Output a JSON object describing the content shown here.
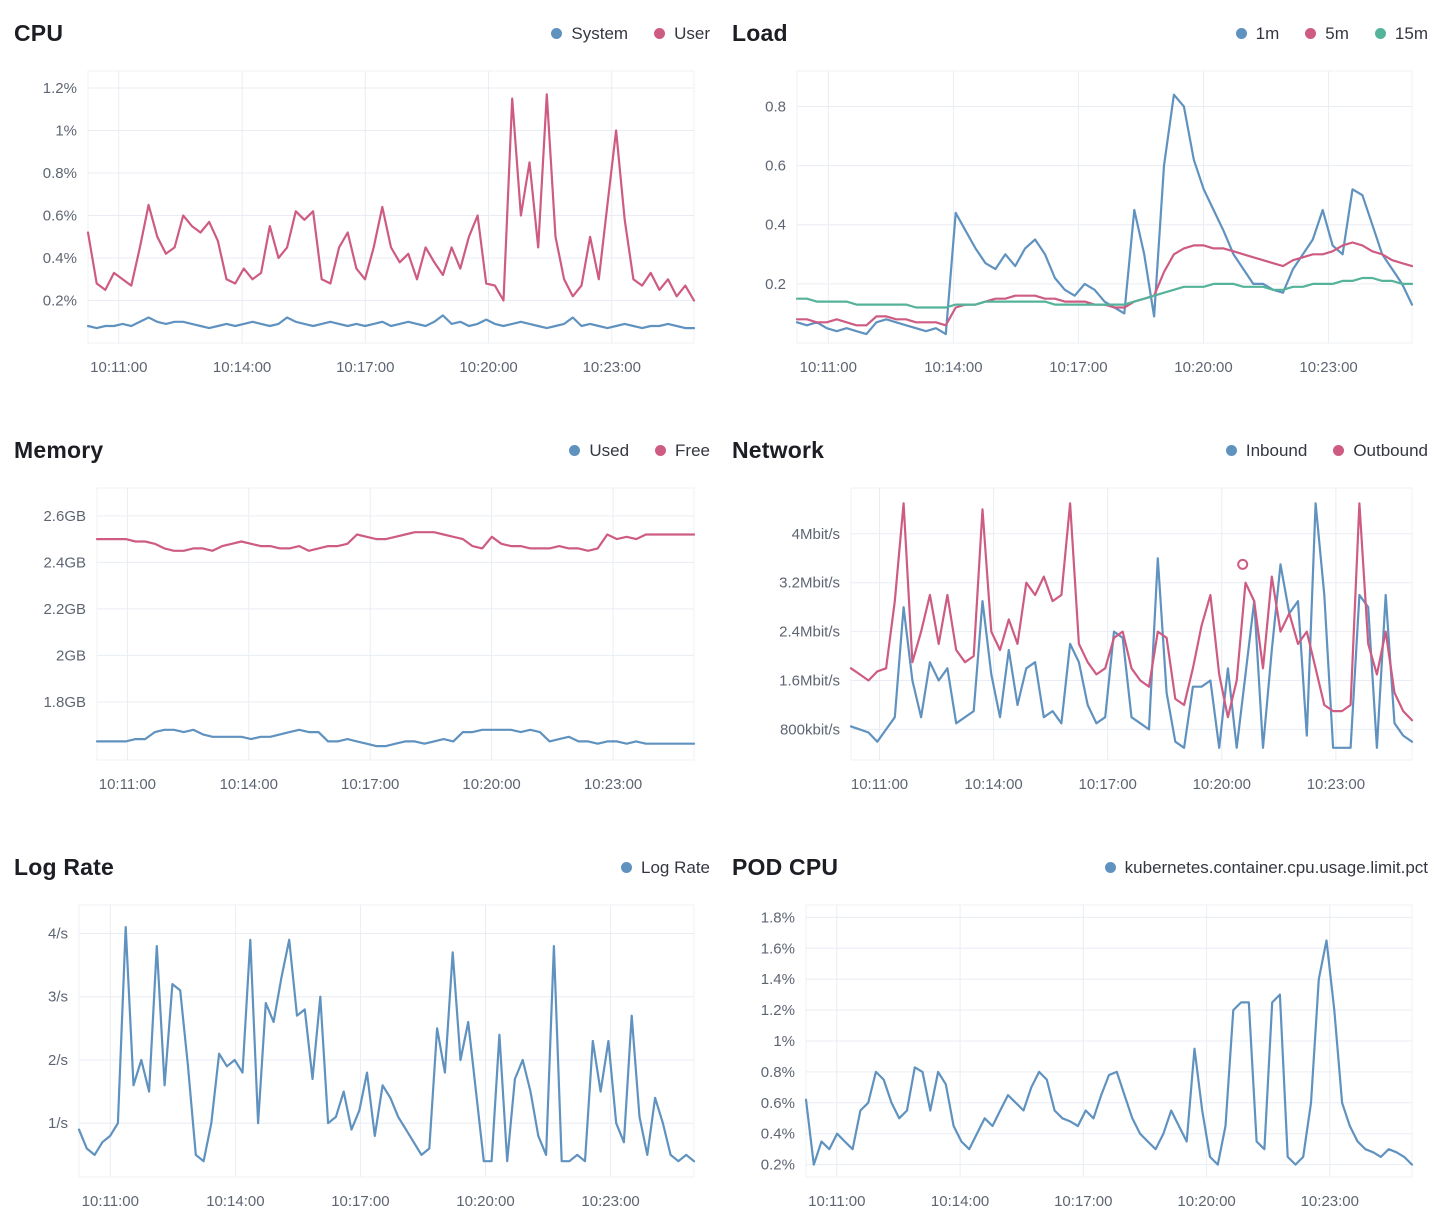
{
  "colors": {
    "blue": "#6092C0",
    "pink": "#CE5C82",
    "green": "#54B399",
    "grid": "#E9EDF3",
    "axis_text": "#5E6572",
    "title_text": "#1D1E24"
  },
  "chart_data": [
    {
      "type": "line",
      "title": "CPU",
      "legend_position": "top-right",
      "grid": true,
      "x_tick_labels": [
        "10:11:00",
        "10:14:00",
        "10:17:00",
        "10:20:00",
        "10:23:00"
      ],
      "x_tick_minutes": [
        1,
        4,
        7,
        10,
        13
      ],
      "x_domain_minutes": [
        0.25,
        15.0
      ],
      "y_tick_labels": [
        "0.2%",
        "0.4%",
        "0.6%",
        "0.8%",
        "1%",
        "1.2%"
      ],
      "y_tick_values": [
        0.2,
        0.4,
        0.6,
        0.8,
        1.0,
        1.2
      ],
      "ylim": [
        0,
        1.28
      ],
      "unit": "%",
      "series": [
        {
          "name": "System",
          "color": "#6092C0",
          "values": [
            0.08,
            0.07,
            0.08,
            0.08,
            0.09,
            0.08,
            0.1,
            0.12,
            0.1,
            0.09,
            0.1,
            0.1,
            0.09,
            0.08,
            0.07,
            0.08,
            0.09,
            0.08,
            0.09,
            0.1,
            0.09,
            0.08,
            0.09,
            0.12,
            0.1,
            0.09,
            0.08,
            0.09,
            0.1,
            0.09,
            0.08,
            0.09,
            0.08,
            0.09,
            0.1,
            0.08,
            0.09,
            0.1,
            0.09,
            0.08,
            0.1,
            0.13,
            0.09,
            0.1,
            0.08,
            0.09,
            0.11,
            0.09,
            0.08,
            0.09,
            0.1,
            0.09,
            0.08,
            0.07,
            0.08,
            0.09,
            0.12,
            0.08,
            0.09,
            0.08,
            0.07,
            0.08,
            0.09,
            0.08,
            0.07,
            0.08,
            0.08,
            0.09,
            0.08,
            0.07,
            0.07
          ]
        },
        {
          "name": "User",
          "color": "#CE5C82",
          "values": [
            0.52,
            0.28,
            0.25,
            0.33,
            0.3,
            0.27,
            0.45,
            0.65,
            0.5,
            0.42,
            0.45,
            0.6,
            0.55,
            0.52,
            0.57,
            0.48,
            0.3,
            0.28,
            0.35,
            0.3,
            0.33,
            0.55,
            0.4,
            0.45,
            0.62,
            0.58,
            0.62,
            0.3,
            0.28,
            0.45,
            0.52,
            0.35,
            0.3,
            0.45,
            0.64,
            0.45,
            0.38,
            0.42,
            0.3,
            0.45,
            0.38,
            0.32,
            0.45,
            0.35,
            0.5,
            0.6,
            0.28,
            0.27,
            0.2,
            1.15,
            0.6,
            0.85,
            0.45,
            1.17,
            0.5,
            0.3,
            0.22,
            0.27,
            0.5,
            0.3,
            0.65,
            1.0,
            0.58,
            0.3,
            0.27,
            0.33,
            0.25,
            0.3,
            0.22,
            0.27,
            0.2
          ]
        }
      ]
    },
    {
      "type": "line",
      "title": "Load",
      "legend_position": "top-right",
      "grid": true,
      "x_tick_labels": [
        "10:11:00",
        "10:14:00",
        "10:17:00",
        "10:20:00",
        "10:23:00"
      ],
      "x_tick_minutes": [
        1,
        4,
        7,
        10,
        13
      ],
      "x_domain_minutes": [
        0.25,
        15.0
      ],
      "y_tick_labels": [
        "0.2",
        "0.4",
        "0.6",
        "0.8"
      ],
      "y_tick_values": [
        0.2,
        0.4,
        0.6,
        0.8
      ],
      "ylim": [
        0,
        0.92
      ],
      "unit": "",
      "series": [
        {
          "name": "1m",
          "color": "#6092C0",
          "values": [
            0.07,
            0.06,
            0.07,
            0.05,
            0.04,
            0.05,
            0.04,
            0.03,
            0.07,
            0.08,
            0.07,
            0.06,
            0.05,
            0.04,
            0.05,
            0.03,
            0.44,
            0.38,
            0.32,
            0.27,
            0.25,
            0.3,
            0.26,
            0.32,
            0.35,
            0.3,
            0.22,
            0.18,
            0.16,
            0.2,
            0.18,
            0.14,
            0.12,
            0.1,
            0.45,
            0.3,
            0.09,
            0.6,
            0.84,
            0.8,
            0.62,
            0.52,
            0.45,
            0.38,
            0.3,
            0.25,
            0.2,
            0.2,
            0.18,
            0.17,
            0.25,
            0.3,
            0.35,
            0.45,
            0.33,
            0.3,
            0.52,
            0.5,
            0.4,
            0.3,
            0.25,
            0.2,
            0.13
          ]
        },
        {
          "name": "5m",
          "color": "#CE5C82",
          "values": [
            0.08,
            0.08,
            0.07,
            0.07,
            0.08,
            0.07,
            0.06,
            0.06,
            0.09,
            0.09,
            0.08,
            0.08,
            0.07,
            0.07,
            0.07,
            0.06,
            0.12,
            0.13,
            0.13,
            0.14,
            0.15,
            0.15,
            0.16,
            0.16,
            0.16,
            0.15,
            0.15,
            0.14,
            0.14,
            0.14,
            0.13,
            0.13,
            0.12,
            0.12,
            0.14,
            0.15,
            0.16,
            0.24,
            0.3,
            0.32,
            0.33,
            0.33,
            0.32,
            0.32,
            0.31,
            0.3,
            0.29,
            0.28,
            0.27,
            0.26,
            0.28,
            0.29,
            0.3,
            0.3,
            0.31,
            0.33,
            0.34,
            0.33,
            0.31,
            0.3,
            0.28,
            0.27,
            0.26
          ]
        },
        {
          "name": "15m",
          "color": "#54B399",
          "values": [
            0.15,
            0.15,
            0.14,
            0.14,
            0.14,
            0.14,
            0.13,
            0.13,
            0.13,
            0.13,
            0.13,
            0.13,
            0.12,
            0.12,
            0.12,
            0.12,
            0.13,
            0.13,
            0.13,
            0.14,
            0.14,
            0.14,
            0.14,
            0.14,
            0.14,
            0.14,
            0.13,
            0.13,
            0.13,
            0.13,
            0.13,
            0.13,
            0.13,
            0.13,
            0.14,
            0.15,
            0.16,
            0.17,
            0.18,
            0.19,
            0.19,
            0.19,
            0.2,
            0.2,
            0.2,
            0.19,
            0.19,
            0.19,
            0.18,
            0.18,
            0.19,
            0.19,
            0.2,
            0.2,
            0.2,
            0.21,
            0.21,
            0.22,
            0.22,
            0.21,
            0.21,
            0.2,
            0.2
          ]
        }
      ]
    },
    {
      "type": "line",
      "title": "Memory",
      "legend_position": "top-right",
      "grid": true,
      "x_tick_labels": [
        "10:11:00",
        "10:14:00",
        "10:17:00",
        "10:20:00",
        "10:23:00"
      ],
      "x_tick_minutes": [
        1,
        4,
        7,
        10,
        13
      ],
      "x_domain_minutes": [
        0.25,
        15.0
      ],
      "y_tick_labels": [
        "1.8GB",
        "2GB",
        "2.2GB",
        "2.4GB",
        "2.6GB"
      ],
      "y_tick_values": [
        1.8,
        2.0,
        2.2,
        2.4,
        2.6
      ],
      "ylim": [
        1.55,
        2.72
      ],
      "unit": "GB",
      "series": [
        {
          "name": "Used",
          "color": "#6092C0",
          "values": [
            1.63,
            1.63,
            1.63,
            1.63,
            1.64,
            1.64,
            1.67,
            1.68,
            1.68,
            1.67,
            1.68,
            1.66,
            1.65,
            1.65,
            1.65,
            1.65,
            1.64,
            1.65,
            1.65,
            1.66,
            1.67,
            1.68,
            1.67,
            1.67,
            1.63,
            1.63,
            1.64,
            1.63,
            1.62,
            1.61,
            1.61,
            1.62,
            1.63,
            1.63,
            1.62,
            1.63,
            1.64,
            1.63,
            1.67,
            1.67,
            1.68,
            1.68,
            1.68,
            1.68,
            1.67,
            1.68,
            1.67,
            1.63,
            1.64,
            1.65,
            1.63,
            1.63,
            1.62,
            1.63,
            1.63,
            1.62,
            1.63,
            1.62,
            1.62,
            1.62,
            1.62,
            1.62,
            1.62
          ]
        },
        {
          "name": "Free",
          "color": "#CE5C82",
          "values": [
            2.5,
            2.5,
            2.5,
            2.5,
            2.49,
            2.49,
            2.48,
            2.46,
            2.45,
            2.45,
            2.46,
            2.46,
            2.45,
            2.47,
            2.48,
            2.49,
            2.48,
            2.47,
            2.47,
            2.46,
            2.46,
            2.47,
            2.45,
            2.46,
            2.47,
            2.47,
            2.48,
            2.52,
            2.51,
            2.5,
            2.5,
            2.51,
            2.52,
            2.53,
            2.53,
            2.53,
            2.52,
            2.51,
            2.5,
            2.47,
            2.46,
            2.51,
            2.48,
            2.47,
            2.47,
            2.46,
            2.46,
            2.46,
            2.47,
            2.46,
            2.46,
            2.45,
            2.46,
            2.52,
            2.5,
            2.51,
            2.5,
            2.52,
            2.52,
            2.52,
            2.52,
            2.52,
            2.52
          ]
        }
      ]
    },
    {
      "type": "line",
      "title": "Network",
      "legend_position": "top-right",
      "grid": true,
      "x_tick_labels": [
        "10:11:00",
        "10:14:00",
        "10:17:00",
        "10:20:00",
        "10:23:00"
      ],
      "x_tick_minutes": [
        1,
        4,
        7,
        10,
        13
      ],
      "x_domain_minutes": [
        0.25,
        15.0
      ],
      "y_tick_labels": [
        "800kbit/s",
        "1.6Mbit/s",
        "2.4Mbit/s",
        "3.2Mbit/s",
        "4Mbit/s"
      ],
      "y_tick_values": [
        0.8,
        1.6,
        2.4,
        3.2,
        4.0
      ],
      "ylim": [
        0.3,
        4.75
      ],
      "unit": "Mbit/s",
      "series": [
        {
          "name": "Inbound",
          "color": "#6092C0",
          "values": [
            0.85,
            0.8,
            0.75,
            0.6,
            0.8,
            1.0,
            2.8,
            1.6,
            1.0,
            1.9,
            1.6,
            1.8,
            0.9,
            1.0,
            1.1,
            2.9,
            1.7,
            1.0,
            2.1,
            1.2,
            1.8,
            1.9,
            1.0,
            1.1,
            0.9,
            2.2,
            1.9,
            1.2,
            0.9,
            1.0,
            2.4,
            2.3,
            1.0,
            0.9,
            0.8,
            3.6,
            1.4,
            0.6,
            0.5,
            1.5,
            1.5,
            1.6,
            0.5,
            1.8,
            0.5,
            1.7,
            2.9,
            0.5,
            2.1,
            3.5,
            2.7,
            2.9,
            0.7,
            4.5,
            3.0,
            0.5,
            0.5,
            0.5,
            3.0,
            2.8,
            0.5,
            3.0,
            0.9,
            0.7,
            0.6
          ]
        },
        {
          "name": "Outbound",
          "color": "#CE5C82",
          "values": [
            1.8,
            1.7,
            1.6,
            1.75,
            1.8,
            2.9,
            4.5,
            1.9,
            2.4,
            3.0,
            2.2,
            3.0,
            2.1,
            1.9,
            2.0,
            4.4,
            2.4,
            2.1,
            2.6,
            2.2,
            3.2,
            3.0,
            3.3,
            2.9,
            3.0,
            4.5,
            2.2,
            1.9,
            1.7,
            1.8,
            2.3,
            2.4,
            1.8,
            1.6,
            1.5,
            2.4,
            2.3,
            1.3,
            1.2,
            1.8,
            2.5,
            3.0,
            1.7,
            1.0,
            1.6,
            3.2,
            2.9,
            1.8,
            3.3,
            2.4,
            2.7,
            2.2,
            2.4,
            1.8,
            1.2,
            1.1,
            1.1,
            1.2,
            4.5,
            2.2,
            1.7,
            2.4,
            1.4,
            1.1,
            0.95
          ]
        }
      ],
      "markers": [
        {
          "x_minute": 10.55,
          "value": 3.5,
          "color": "#CE5C82",
          "style": "hollow-circle"
        }
      ]
    },
    {
      "type": "line",
      "title": "Log Rate",
      "legend_position": "top-right",
      "grid": true,
      "x_tick_labels": [
        "10:11:00",
        "10:14:00",
        "10:17:00",
        "10:20:00",
        "10:23:00"
      ],
      "x_tick_minutes": [
        1,
        4,
        7,
        10,
        13
      ],
      "x_domain_minutes": [
        0.25,
        15.0
      ],
      "y_tick_labels": [
        "1/s",
        "2/s",
        "3/s",
        "4/s"
      ],
      "y_tick_values": [
        1,
        2,
        3,
        4
      ],
      "ylim": [
        0.15,
        4.45
      ],
      "unit": "/s",
      "series": [
        {
          "name": "Log Rate",
          "color": "#6092C0",
          "values": [
            0.9,
            0.6,
            0.5,
            0.7,
            0.8,
            1.0,
            4.1,
            1.6,
            2.0,
            1.5,
            3.8,
            1.6,
            3.2,
            3.1,
            1.9,
            0.5,
            0.4,
            1.0,
            2.1,
            1.9,
            2.0,
            1.8,
            3.9,
            1.0,
            2.9,
            2.6,
            3.3,
            3.9,
            2.7,
            2.8,
            1.7,
            3.0,
            1.0,
            1.1,
            1.5,
            0.9,
            1.2,
            1.8,
            0.8,
            1.6,
            1.4,
            1.1,
            0.9,
            0.7,
            0.5,
            0.6,
            2.5,
            1.8,
            3.7,
            2.0,
            2.6,
            1.5,
            0.4,
            0.4,
            2.4,
            0.4,
            1.7,
            2.0,
            1.5,
            0.8,
            0.5,
            3.8,
            0.4,
            0.4,
            0.5,
            0.4,
            2.3,
            1.5,
            2.3,
            1.0,
            0.7,
            2.7,
            1.1,
            0.5,
            1.4,
            1.0,
            0.5,
            0.4,
            0.5,
            0.4
          ]
        }
      ]
    },
    {
      "type": "line",
      "title": "POD CPU",
      "legend_position": "top-right",
      "grid": true,
      "x_tick_labels": [
        "10:11:00",
        "10:14:00",
        "10:17:00",
        "10:20:00",
        "10:23:00"
      ],
      "x_tick_minutes": [
        1,
        4,
        7,
        10,
        13
      ],
      "x_domain_minutes": [
        0.25,
        15.0
      ],
      "y_tick_labels": [
        "0.2%",
        "0.4%",
        "0.6%",
        "0.8%",
        "1%",
        "1.2%",
        "1.4%",
        "1.6%",
        "1.8%"
      ],
      "y_tick_values": [
        0.2,
        0.4,
        0.6,
        0.8,
        1.0,
        1.2,
        1.4,
        1.6,
        1.8
      ],
      "ylim": [
        0.12,
        1.88
      ],
      "unit": "%",
      "series": [
        {
          "name": "kubernetes.container.cpu.usage.limit.pct",
          "color": "#6092C0",
          "values": [
            0.62,
            0.2,
            0.35,
            0.3,
            0.4,
            0.35,
            0.3,
            0.55,
            0.6,
            0.8,
            0.75,
            0.6,
            0.5,
            0.55,
            0.83,
            0.8,
            0.55,
            0.8,
            0.72,
            0.45,
            0.35,
            0.3,
            0.4,
            0.5,
            0.45,
            0.55,
            0.65,
            0.6,
            0.55,
            0.7,
            0.8,
            0.75,
            0.55,
            0.5,
            0.48,
            0.45,
            0.55,
            0.5,
            0.65,
            0.78,
            0.8,
            0.65,
            0.5,
            0.4,
            0.35,
            0.3,
            0.4,
            0.55,
            0.45,
            0.35,
            0.95,
            0.55,
            0.25,
            0.2,
            0.45,
            1.2,
            1.25,
            1.25,
            0.35,
            0.3,
            1.25,
            1.3,
            0.25,
            0.2,
            0.25,
            0.6,
            1.4,
            1.65,
            1.2,
            0.6,
            0.45,
            0.35,
            0.3,
            0.28,
            0.25,
            0.3,
            0.28,
            0.25,
            0.2
          ]
        }
      ]
    }
  ]
}
